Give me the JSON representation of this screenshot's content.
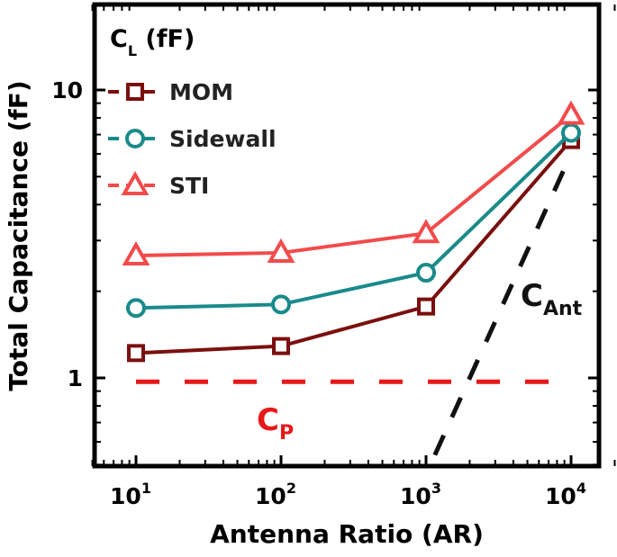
{
  "chart_data": {
    "type": "line",
    "title": "",
    "xlabel": "Antenna Ratio (AR)",
    "ylabel": "Total Capacitance (fF)",
    "x_scale": "log",
    "y_scale": "log",
    "xlim": [
      5,
      20000
    ],
    "ylim": [
      0.5,
      20
    ],
    "x_ticks": [
      {
        "value": 10,
        "base": "10",
        "exp": "1"
      },
      {
        "value": 100,
        "base": "10",
        "exp": "2"
      },
      {
        "value": 1000,
        "base": "10",
        "exp": "3"
      },
      {
        "value": 10000,
        "base": "10",
        "exp": "4"
      }
    ],
    "y_ticks": [
      {
        "value": 1,
        "label": "1"
      },
      {
        "value": 10,
        "label": "10"
      }
    ],
    "grid": false,
    "legend": {
      "title_main": "C",
      "title_sub": "L",
      "title_unit": " (fF)",
      "placement": "top-left"
    },
    "x": [
      10,
      100,
      1000,
      10000
    ],
    "series": [
      {
        "name": "MOM",
        "values": [
          1.22,
          1.29,
          1.77,
          6.7
        ],
        "color": "#7b0f0f",
        "marker": "square"
      },
      {
        "name": "Sidewall",
        "values": [
          1.75,
          1.8,
          2.32,
          7.1
        ],
        "color": "#1a8a8a",
        "marker": "circle"
      },
      {
        "name": "STI",
        "values": [
          2.66,
          2.72,
          3.18,
          8.2
        ],
        "color": "#f24b4b",
        "marker": "triangle"
      }
    ],
    "reference_lines": [
      {
        "label_main": "C",
        "label_sub": "P",
        "color": "#e81818",
        "x": [
          10,
          10000
        ],
        "y": [
          0.97,
          0.97
        ]
      },
      {
        "label_main": "C",
        "label_sub": "Ant",
        "color": "#111111",
        "x": [
          1150,
          10000
        ],
        "y": [
          0.54,
          6.0
        ]
      }
    ]
  }
}
